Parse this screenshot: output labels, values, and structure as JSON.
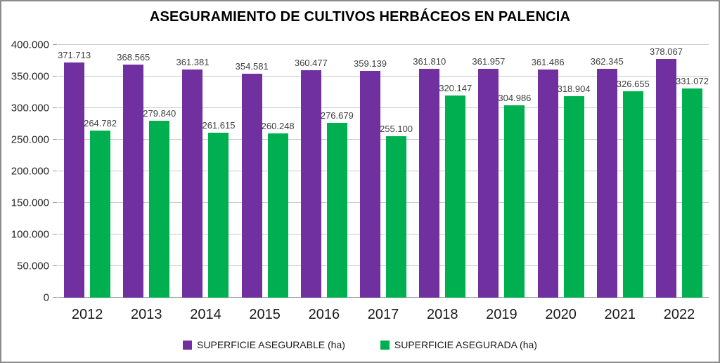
{
  "chart_data": {
    "type": "bar",
    "title": "ASEGURAMIENTO DE CULTIVOS HERBÁCEOS EN PALENCIA",
    "categories": [
      "2012",
      "2013",
      "2014",
      "2015",
      "2016",
      "2017",
      "2018",
      "2019",
      "2020",
      "2021",
      "2022"
    ],
    "series": [
      {
        "name": "SUPERFICIE ASEGURABLE (ha)",
        "color": "#7030A0",
        "values": [
          371713,
          368565,
          361381,
          354581,
          360477,
          359139,
          361810,
          361957,
          361486,
          362345,
          378067
        ],
        "labels": [
          "371.713",
          "368.565",
          "361.381",
          "354.581",
          "360.477",
          "359.139",
          "361.810",
          "361.957",
          "361.486",
          "362.345",
          "378.067"
        ]
      },
      {
        "name": "SUPERFICIE ASEGURADA (ha)",
        "color": "#00B050",
        "values": [
          264782,
          279840,
          261615,
          260248,
          276679,
          255100,
          320147,
          304986,
          318904,
          326655,
          331072
        ],
        "labels": [
          "264.782",
          "279.840",
          "261.615",
          "260.248",
          "276.679",
          "255.100",
          "320.147",
          "304.986",
          "318.904",
          "326.655",
          "331.072"
        ]
      }
    ],
    "ylim": [
      0,
      400000
    ],
    "ytick_step": 50000,
    "ytick_labels": [
      "0",
      "50.000",
      "100.000",
      "150.000",
      "200.000",
      "250.000",
      "300.000",
      "350.000",
      "400.000"
    ],
    "grid": true,
    "legend_position": "bottom",
    "colors": {
      "gridline": "#c9c9c9",
      "axis_line": "#9b9b9b",
      "border": "#8c8c8c",
      "data_label": "#404040"
    }
  }
}
